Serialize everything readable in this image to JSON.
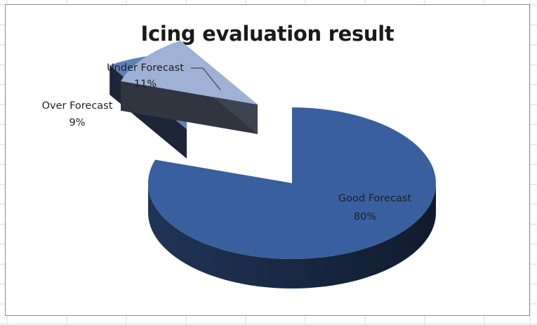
{
  "chart_data": {
    "type": "pie",
    "title": "Icing evaluation result",
    "style": "3D exploded pie",
    "slices": [
      {
        "label": "Good Forecast",
        "value": 80,
        "percent_text": "80%",
        "color": "#3a5f9f"
      },
      {
        "label": "Under Forecast",
        "value": 11,
        "percent_text": "11%",
        "color": "#9fb1d4"
      },
      {
        "label": "Over Forecast",
        "value": 9,
        "percent_text": "9%",
        "color": "#5f80bb"
      }
    ],
    "legend": "none",
    "data_labels": "category name and percentage"
  }
}
